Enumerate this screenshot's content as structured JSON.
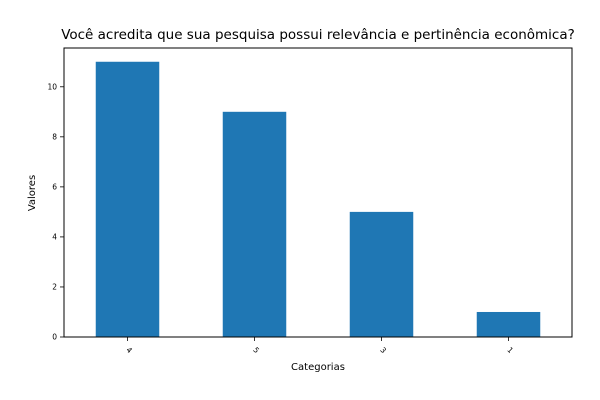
{
  "chart_data": {
    "type": "bar",
    "title": "Você acredita que sua pesquisa possui relevância e pertinência econômica?",
    "xlabel": "Categorias",
    "ylabel": "Valores",
    "categories": [
      "4",
      "5",
      "3",
      "1"
    ],
    "values": [
      11,
      9,
      5,
      1
    ],
    "yticks": [
      "0",
      "2",
      "4",
      "6",
      "8",
      "10"
    ],
    "ylim": [
      0,
      11.55
    ],
    "grid": false,
    "bar_color": "#1f77b4"
  }
}
